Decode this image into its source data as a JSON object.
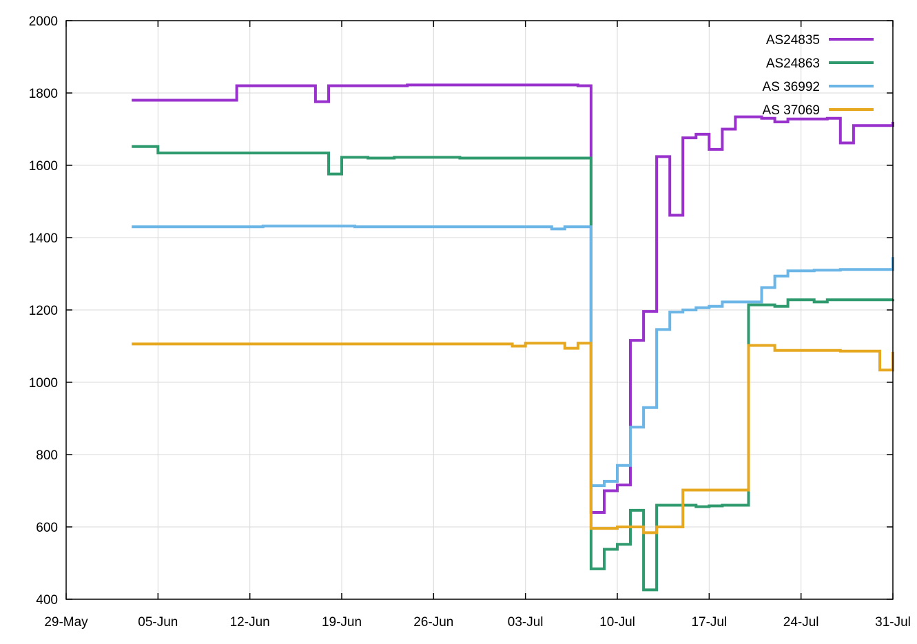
{
  "chart_data": {
    "type": "line",
    "step": true,
    "title": "",
    "xlabel": "",
    "ylabel": "",
    "x_axis": "date",
    "xlim": [
      "2020-05-29",
      "2020-07-31"
    ],
    "ylim": [
      400,
      2000
    ],
    "y_ticks": [
      400,
      600,
      800,
      1000,
      1200,
      1400,
      1600,
      1800,
      2000
    ],
    "x_ticks": [
      {
        "date": "2020-05-29",
        "label": "29-May"
      },
      {
        "date": "2020-06-05",
        "label": "05-Jun"
      },
      {
        "date": "2020-06-12",
        "label": "12-Jun"
      },
      {
        "date": "2020-06-19",
        "label": "19-Jun"
      },
      {
        "date": "2020-06-26",
        "label": "26-Jun"
      },
      {
        "date": "2020-07-03",
        "label": "03-Jul"
      },
      {
        "date": "2020-07-10",
        "label": "10-Jul"
      },
      {
        "date": "2020-07-17",
        "label": "17-Jul"
      },
      {
        "date": "2020-07-24",
        "label": "24-Jul"
      },
      {
        "date": "2020-07-31",
        "label": "31-Jul"
      }
    ],
    "grid": true,
    "legend_position": "top-right",
    "series": [
      {
        "name": "AS24835",
        "color": "#9932cc",
        "points": [
          [
            "2020-06-03",
            1780
          ],
          [
            "2020-06-08",
            1780
          ],
          [
            "2020-06-11",
            1820
          ],
          [
            "2020-06-16",
            1820
          ],
          [
            "2020-06-17",
            1776
          ],
          [
            "2020-06-18",
            1820
          ],
          [
            "2020-06-21",
            1820
          ],
          [
            "2020-06-24",
            1822
          ],
          [
            "2020-07-04",
            1822
          ],
          [
            "2020-07-06",
            1822
          ],
          [
            "2020-07-07",
            1820
          ],
          [
            "2020-07-08",
            640
          ],
          [
            "2020-07-09",
            700
          ],
          [
            "2020-07-10",
            716
          ],
          [
            "2020-07-11",
            1116
          ],
          [
            "2020-07-12",
            1196
          ],
          [
            "2020-07-13",
            1624
          ],
          [
            "2020-07-14",
            1462
          ],
          [
            "2020-07-15",
            1676
          ],
          [
            "2020-07-16",
            1686
          ],
          [
            "2020-07-17",
            1644
          ],
          [
            "2020-07-18",
            1700
          ],
          [
            "2020-07-19",
            1734
          ],
          [
            "2020-07-21",
            1730
          ],
          [
            "2020-07-22",
            1720
          ],
          [
            "2020-07-23",
            1728
          ],
          [
            "2020-07-26",
            1730
          ],
          [
            "2020-07-27",
            1662
          ],
          [
            "2020-07-28",
            1710
          ],
          [
            "2020-07-31",
            1720
          ]
        ]
      },
      {
        "name": "AS24863",
        "color": "#2e9a6e",
        "points": [
          [
            "2020-06-03",
            1652
          ],
          [
            "2020-06-05",
            1634
          ],
          [
            "2020-06-10",
            1634
          ],
          [
            "2020-06-15",
            1634
          ],
          [
            "2020-06-18",
            1576
          ],
          [
            "2020-06-19",
            1622
          ],
          [
            "2020-06-21",
            1620
          ],
          [
            "2020-06-23",
            1622
          ],
          [
            "2020-06-28",
            1620
          ],
          [
            "2020-07-03",
            1620
          ],
          [
            "2020-07-07",
            1620
          ],
          [
            "2020-07-08",
            484
          ],
          [
            "2020-07-09",
            538
          ],
          [
            "2020-07-10",
            552
          ],
          [
            "2020-07-11",
            646
          ],
          [
            "2020-07-12",
            426
          ],
          [
            "2020-07-13",
            660
          ],
          [
            "2020-07-16",
            656
          ],
          [
            "2020-07-17",
            658
          ],
          [
            "2020-07-18",
            660
          ],
          [
            "2020-07-20",
            1214
          ],
          [
            "2020-07-22",
            1210
          ],
          [
            "2020-07-23",
            1228
          ],
          [
            "2020-07-25",
            1222
          ],
          [
            "2020-07-26",
            1228
          ],
          [
            "2020-07-31",
            1230
          ]
        ]
      },
      {
        "name": "AS 36992",
        "color": "#6bb6e6",
        "points": [
          [
            "2020-06-03",
            1430
          ],
          [
            "2020-06-10",
            1430
          ],
          [
            "2020-06-13",
            1432
          ],
          [
            "2020-06-20",
            1430
          ],
          [
            "2020-07-04",
            1430
          ],
          [
            "2020-07-05",
            1424
          ],
          [
            "2020-07-06",
            1430
          ],
          [
            "2020-07-08",
            714
          ],
          [
            "2020-07-09",
            726
          ],
          [
            "2020-07-10",
            770
          ],
          [
            "2020-07-11",
            876
          ],
          [
            "2020-07-12",
            930
          ],
          [
            "2020-07-13",
            1146
          ],
          [
            "2020-07-14",
            1194
          ],
          [
            "2020-07-15",
            1200
          ],
          [
            "2020-07-16",
            1206
          ],
          [
            "2020-07-17",
            1210
          ],
          [
            "2020-07-18",
            1222
          ],
          [
            "2020-07-20",
            1222
          ],
          [
            "2020-07-21",
            1262
          ],
          [
            "2020-07-22",
            1294
          ],
          [
            "2020-07-23",
            1308
          ],
          [
            "2020-07-25",
            1310
          ],
          [
            "2020-07-27",
            1312
          ],
          [
            "2020-07-31",
            1346
          ]
        ]
      },
      {
        "name": "AS 37069",
        "color": "#e6a820",
        "points": [
          [
            "2020-06-03",
            1106
          ],
          [
            "2020-06-10",
            1106
          ],
          [
            "2020-06-20",
            1106
          ],
          [
            "2020-07-02",
            1100
          ],
          [
            "2020-07-03",
            1108
          ],
          [
            "2020-07-06",
            1094
          ],
          [
            "2020-07-07",
            1108
          ],
          [
            "2020-07-08",
            596
          ],
          [
            "2020-07-10",
            600
          ],
          [
            "2020-07-12",
            584
          ],
          [
            "2020-07-13",
            600
          ],
          [
            "2020-07-15",
            702
          ],
          [
            "2020-07-20",
            1102
          ],
          [
            "2020-07-22",
            1088
          ],
          [
            "2020-07-27",
            1086
          ],
          [
            "2020-07-30",
            1034
          ],
          [
            "2020-07-31",
            1084
          ]
        ]
      }
    ]
  }
}
